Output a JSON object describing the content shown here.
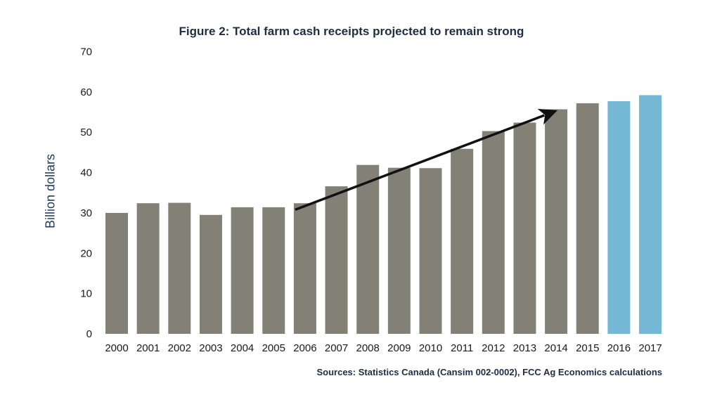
{
  "chart_data": {
    "type": "bar",
    "title": "Figure 2: Total farm cash receipts projected to remain strong",
    "xlabel": "",
    "ylabel": "Billion dollars",
    "ylim": [
      0,
      70
    ],
    "yticks": [
      0,
      10,
      20,
      30,
      40,
      50,
      60,
      70
    ],
    "grid": false,
    "categories": [
      "2000",
      "2001",
      "2002",
      "2003",
      "2004",
      "2005",
      "2006",
      "2007",
      "2008",
      "2009",
      "2010",
      "2011",
      "2012",
      "2013",
      "2014",
      "2015",
      "2016",
      "2017"
    ],
    "values": [
      30.0,
      32.4,
      32.5,
      29.5,
      31.4,
      31.4,
      32.4,
      36.6,
      41.9,
      41.2,
      41.1,
      45.9,
      50.3,
      52.4,
      55.7,
      57.2,
      57.7,
      59.2
    ],
    "bar_types": [
      "actual",
      "actual",
      "actual",
      "actual",
      "actual",
      "actual",
      "actual",
      "actual",
      "actual",
      "actual",
      "actual",
      "actual",
      "actual",
      "actual",
      "actual",
      "actual",
      "projected",
      "projected"
    ],
    "colors": {
      "actual": "#838176",
      "projected": "#74b8d6",
      "arrow": "#111111"
    },
    "annotations": [
      {
        "type": "trend-arrow",
        "from": {
          "x": "2006",
          "y": 31.5
        },
        "to": {
          "x": "2014",
          "y": 56.5
        }
      }
    ],
    "source": "Sources: Statistics Canada (Cansim 002-0002), FCC Ag Economics calculations"
  }
}
